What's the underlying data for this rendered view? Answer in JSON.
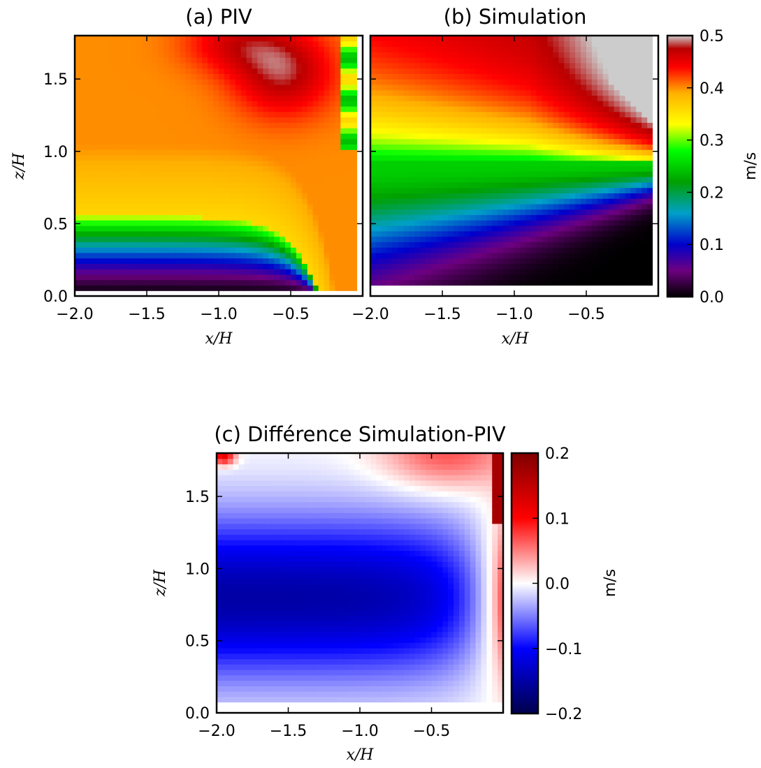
{
  "chart_data": [
    {
      "id": "a",
      "type": "heatmap",
      "title": "(a) PIV",
      "xlabel": "x/H",
      "ylabel": "z/H",
      "xlim": [
        -2.0,
        0.0
      ],
      "ylim": [
        0.0,
        1.8
      ],
      "xticks": [
        "−2.0",
        "−1.5",
        "−1.0",
        "−0.5"
      ],
      "xtick_values": [
        -2.0,
        -1.5,
        -1.0,
        -0.5
      ],
      "yticks": [
        "0.0",
        "0.5",
        "1.0",
        "1.5"
      ],
      "ytick_values": [
        0.0,
        0.5,
        1.0,
        1.5
      ],
      "colormap": "spectral",
      "value_range": [
        0.0,
        0.5
      ],
      "units": "m/s"
    },
    {
      "id": "b",
      "type": "heatmap",
      "title": "(b) Simulation",
      "xlabel": "x/H",
      "ylabel": "",
      "xlim": [
        -2.0,
        0.0
      ],
      "ylim": [
        0.0,
        1.8
      ],
      "xticks": [
        "−2.0",
        "−1.5",
        "−1.0",
        "−0.5"
      ],
      "xtick_values": [
        -2.0,
        -1.5,
        -1.0,
        -0.5
      ],
      "colormap": "spectral",
      "value_range": [
        0.0,
        0.5
      ],
      "units": "m/s",
      "colorbar": {
        "ticks": [
          "0.0",
          "0.1",
          "0.2",
          "0.3",
          "0.4",
          "0.5"
        ],
        "tick_values": [
          0.0,
          0.1,
          0.2,
          0.3,
          0.4,
          0.5
        ],
        "label": "m/s"
      }
    },
    {
      "id": "c",
      "type": "heatmap",
      "title": "(c) Différence Simulation-PIV",
      "xlabel": "x/H",
      "ylabel": "z/H",
      "xlim": [
        -2.0,
        0.0
      ],
      "ylim": [
        0.0,
        1.8
      ],
      "xticks": [
        "−2.0",
        "−1.5",
        "−1.0",
        "−0.5"
      ],
      "xtick_values": [
        -2.0,
        -1.5,
        -1.0,
        -0.5
      ],
      "yticks": [
        "0.0",
        "0.5",
        "1.0",
        "1.5"
      ],
      "ytick_values": [
        0.0,
        0.5,
        1.0,
        1.5
      ],
      "colormap": "seismic",
      "value_range": [
        -0.2,
        0.2
      ],
      "units": "m/s",
      "colorbar": {
        "ticks": [
          "−0.2",
          "−0.1",
          "0.0",
          "0.1",
          "0.2"
        ],
        "tick_values": [
          -0.2,
          -0.1,
          0.0,
          0.1,
          0.2
        ],
        "label": "m/s"
      }
    }
  ],
  "colors": {
    "spectral_stops": [
      "#000000",
      "#6e0080",
      "#0000cc",
      "#00a0c8",
      "#00a000",
      "#00ff00",
      "#ffff00",
      "#ffb000",
      "#ff0000",
      "#b80000",
      "#cccccc"
    ],
    "seismic_stops": [
      "#00004c",
      "#0000ff",
      "#ffffff",
      "#ff0000",
      "#800000"
    ],
    "masked": "#cccccc"
  }
}
